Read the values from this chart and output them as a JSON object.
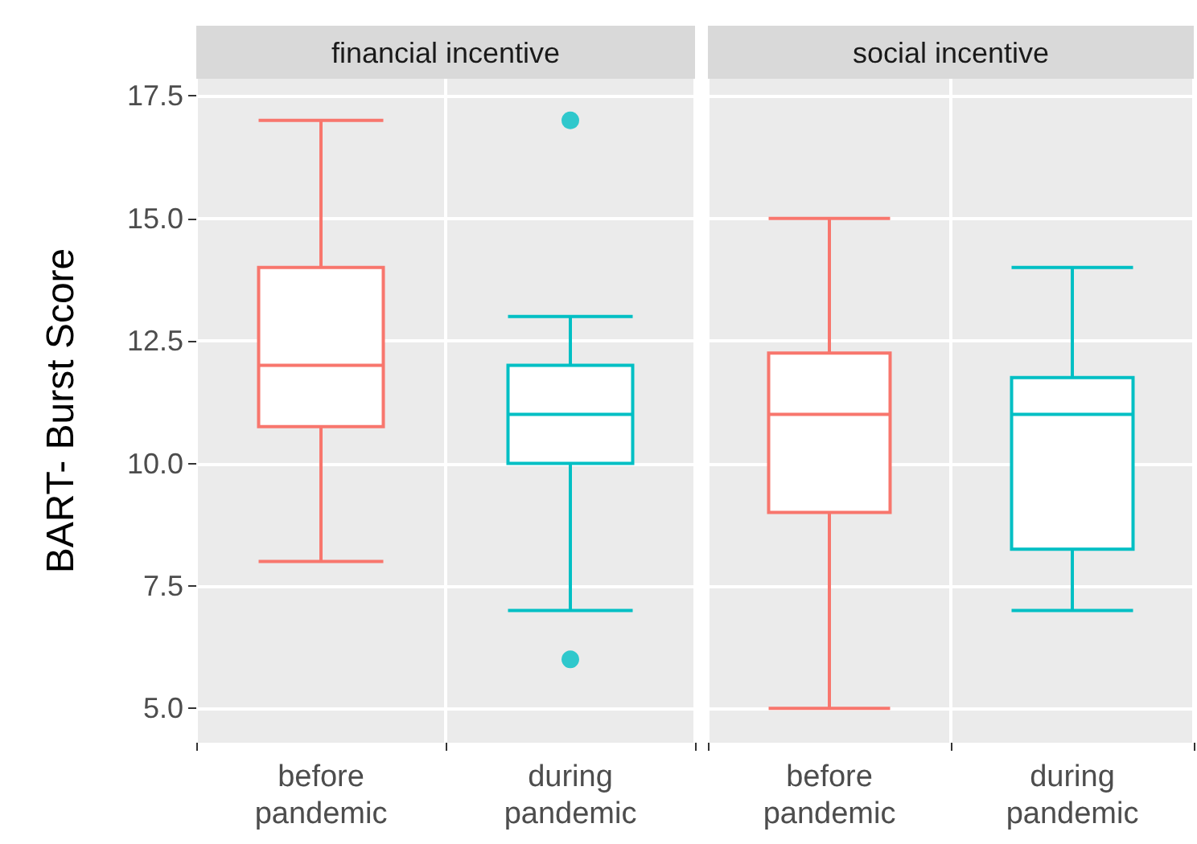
{
  "chart_data": [
    {
      "type": "box",
      "title": "financial incentive",
      "ylabel": "BART- Burst Score",
      "categories": [
        "before\npandemic",
        "during\npandemic"
      ],
      "colors": [
        "#f8766d",
        "#00bfc4"
      ],
      "boxes": [
        {
          "low": 8,
          "q1": 10.75,
          "median": 12,
          "q3": 14,
          "high": 17
        },
        {
          "low": 7,
          "q1": 10,
          "median": 11,
          "q3": 12,
          "high": 13,
          "outliers": [
            17,
            6
          ]
        }
      ],
      "ylim": [
        4.3,
        17.85
      ],
      "yticks": [
        {
          "value": 5,
          "label": "5.0"
        },
        7.5,
        {
          "value": 10,
          "label": "10.0"
        },
        12.5,
        {
          "value": 15,
          "label": "15.0"
        },
        17.5
      ],
      "grid": true
    },
    {
      "type": "box",
      "title": "social incentive",
      "categories": [
        "before\npandemic",
        "during\npandemic"
      ],
      "colors": [
        "#f8766d",
        "#00bfc4"
      ],
      "boxes": [
        {
          "low": 5,
          "q1": 9,
          "median": 11,
          "q3": 12.25,
          "high": 15
        },
        {
          "low": 7,
          "q1": 8.25,
          "median": 11,
          "q3": 11.75,
          "high": 14
        }
      ],
      "ylim": [
        4.3,
        17.85
      ],
      "yticks": [
        5,
        7.5,
        10,
        12.5,
        15,
        17.5
      ],
      "grid": true,
      "tick_labels": "x"
    }
  ]
}
